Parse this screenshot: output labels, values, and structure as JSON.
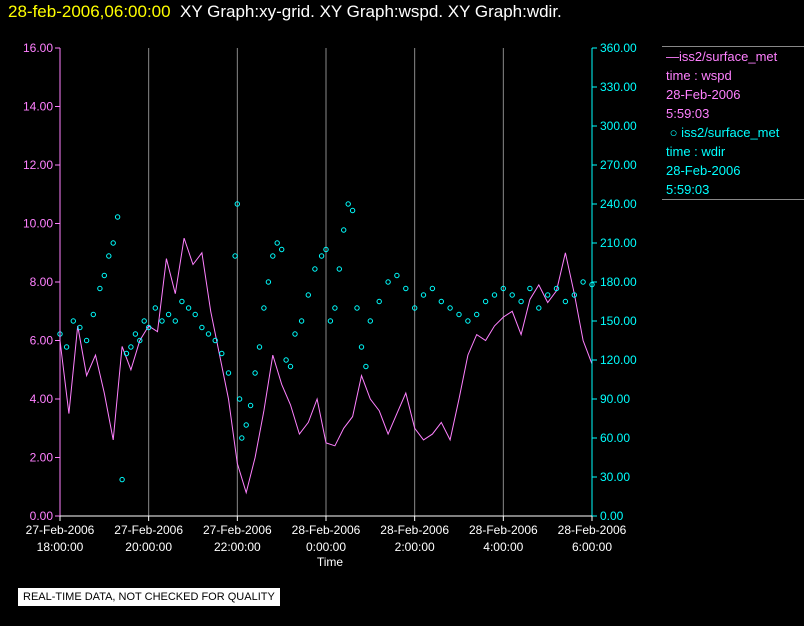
{
  "header": {
    "timestamp": "28-feb-2006,06:00:00",
    "graphs": "XY Graph:xy-grid.  XY Graph:wspd.  XY Graph:wdir."
  },
  "legend": {
    "series1": {
      "name": "iss2/surface_met",
      "var": "time : wspd",
      "date": "28-Feb-2006",
      "time": "5:59:03"
    },
    "series2": {
      "name": "iss2/surface_met",
      "var": "time : wdir",
      "date": "28-Feb-2006",
      "time": "5:59:03"
    }
  },
  "footer": {
    "quality_note": "REAL-TIME DATA, NOT CHECKED FOR QUALITY"
  },
  "colors": {
    "wspd": "#ff80ff",
    "wdir": "#00ffff",
    "axis_left": "#ff80ff",
    "axis_right": "#00ffff",
    "grid": "#8a8a8a",
    "title_time": "#ffff00"
  },
  "chart_data": {
    "type": "line",
    "xlabel": "Time",
    "x_ticks": [
      {
        "hour": 18,
        "date": "27-Feb-2006",
        "time": "18:00:00"
      },
      {
        "hour": 20,
        "date": "27-Feb-2006",
        "time": "20:00:00"
      },
      {
        "hour": 22,
        "date": "27-Feb-2006",
        "time": "22:00:00"
      },
      {
        "hour": 24,
        "date": "28-Feb-2006",
        "time": "0:00:00"
      },
      {
        "hour": 26,
        "date": "28-Feb-2006",
        "time": "2:00:00"
      },
      {
        "hour": 28,
        "date": "28-Feb-2006",
        "time": "4:00:00"
      },
      {
        "hour": 30,
        "date": "28-Feb-2006",
        "time": "6:00:00"
      }
    ],
    "xlim": [
      18,
      30
    ],
    "y_left": {
      "name": "wspd",
      "ylim": [
        0,
        16
      ],
      "ticks": [
        "0.00",
        "2.00",
        "4.00",
        "6.00",
        "8.00",
        "10.00",
        "12.00",
        "14.00",
        "16.00"
      ]
    },
    "y_right": {
      "name": "wdir",
      "ylim": [
        0,
        360
      ],
      "ticks": [
        "0.00",
        "30.00",
        "60.00",
        "90.00",
        "120.00",
        "150.00",
        "180.00",
        "210.00",
        "240.00",
        "270.00",
        "300.00",
        "330.00",
        "360.00"
      ]
    },
    "series": [
      {
        "name": "wspd",
        "style": "line",
        "axis": "left",
        "x": [
          18.0,
          18.2,
          18.4,
          18.6,
          18.8,
          19.0,
          19.2,
          19.4,
          19.6,
          19.8,
          20.0,
          20.2,
          20.4,
          20.6,
          20.8,
          21.0,
          21.2,
          21.4,
          21.6,
          21.8,
          22.0,
          22.2,
          22.4,
          22.6,
          22.8,
          23.0,
          23.2,
          23.4,
          23.6,
          23.8,
          24.0,
          24.2,
          24.4,
          24.6,
          24.8,
          25.0,
          25.2,
          25.4,
          25.6,
          25.8,
          26.0,
          26.2,
          26.4,
          26.6,
          26.8,
          27.0,
          27.2,
          27.4,
          27.6,
          27.8,
          28.0,
          28.2,
          28.4,
          28.6,
          28.8,
          29.0,
          29.2,
          29.4,
          29.6,
          29.8,
          30.0
        ],
        "values": [
          6.0,
          3.5,
          6.5,
          4.8,
          5.5,
          4.2,
          2.6,
          5.8,
          5.0,
          6.0,
          6.5,
          6.3,
          8.8,
          7.6,
          9.5,
          8.6,
          9.0,
          7.0,
          5.5,
          4.0,
          1.8,
          0.8,
          2.0,
          3.6,
          5.5,
          4.5,
          3.8,
          2.8,
          3.2,
          4.0,
          2.5,
          2.4,
          3.0,
          3.4,
          4.8,
          4.0,
          3.6,
          2.8,
          3.5,
          4.2,
          3.0,
          2.6,
          2.8,
          3.2,
          2.6,
          4.0,
          5.5,
          6.2,
          6.0,
          6.5,
          6.8,
          7.0,
          6.2,
          7.4,
          7.9,
          7.3,
          7.7,
          9.0,
          7.6,
          6.0,
          5.2
        ]
      },
      {
        "name": "wdir",
        "style": "points",
        "axis": "right",
        "x": [
          18.0,
          18.15,
          18.3,
          18.45,
          18.6,
          18.75,
          18.9,
          19.0,
          19.1,
          19.2,
          19.3,
          19.4,
          19.5,
          19.6,
          19.7,
          19.8,
          19.9,
          20.0,
          20.15,
          20.3,
          20.45,
          20.6,
          20.75,
          20.9,
          21.05,
          21.2,
          21.35,
          21.5,
          21.65,
          21.8,
          21.95,
          22.0,
          22.05,
          22.1,
          22.2,
          22.3,
          22.4,
          22.5,
          22.6,
          22.7,
          22.8,
          22.9,
          23.0,
          23.1,
          23.2,
          23.3,
          23.45,
          23.6,
          23.75,
          23.9,
          24.0,
          24.1,
          24.2,
          24.3,
          24.4,
          24.5,
          24.6,
          24.7,
          24.8,
          24.9,
          25.0,
          25.2,
          25.4,
          25.6,
          25.8,
          26.0,
          26.2,
          26.4,
          26.6,
          26.8,
          27.0,
          27.2,
          27.4,
          27.6,
          27.8,
          28.0,
          28.2,
          28.4,
          28.6,
          28.8,
          29.0,
          29.2,
          29.4,
          29.6,
          29.8,
          30.0
        ],
        "values": [
          140,
          130,
          150,
          145,
          135,
          155,
          175,
          185,
          200,
          210,
          230,
          28,
          125,
          130,
          140,
          135,
          150,
          145,
          160,
          150,
          155,
          150,
          165,
          160,
          155,
          145,
          140,
          135,
          125,
          110,
          200,
          240,
          90,
          60,
          70,
          85,
          110,
          130,
          160,
          180,
          200,
          210,
          205,
          120,
          115,
          140,
          150,
          170,
          190,
          200,
          205,
          150,
          160,
          190,
          220,
          240,
          235,
          160,
          130,
          115,
          150,
          165,
          180,
          185,
          175,
          160,
          170,
          175,
          165,
          160,
          155,
          150,
          155,
          165,
          170,
          175,
          170,
          165,
          175,
          160,
          170,
          175,
          165,
          170,
          180,
          178
        ]
      }
    ]
  }
}
